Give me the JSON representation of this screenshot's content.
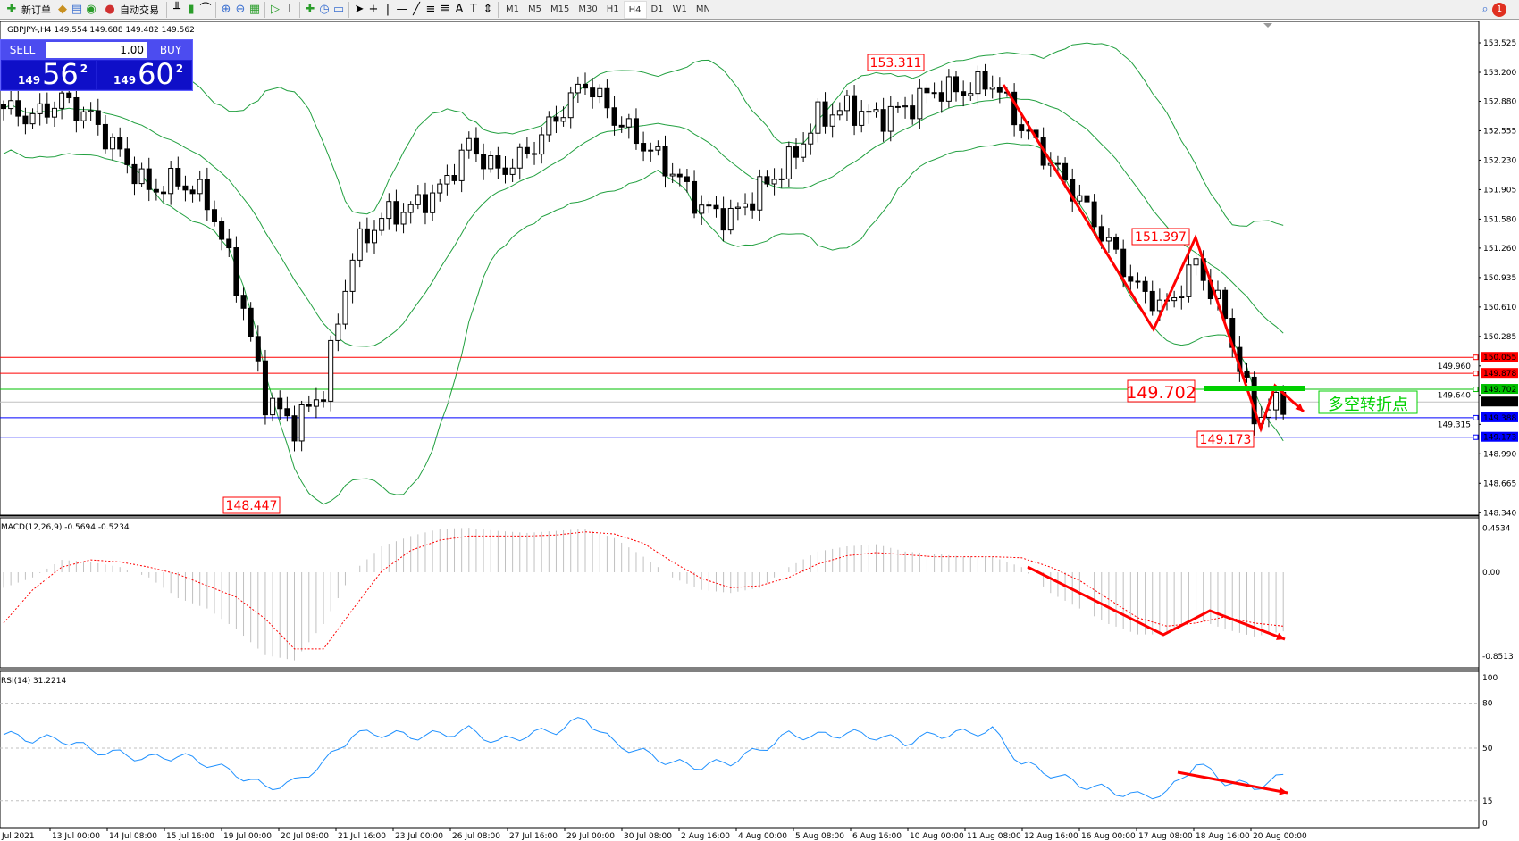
{
  "toolbar": {
    "new_order": "新订单",
    "auto_trading": "自动交易",
    "icons": [
      "new-order-icon",
      "gold-icon",
      "history-icon",
      "signal-icon",
      "auto-trading-icon",
      "bar-chart-icon",
      "candle-chart-icon",
      "line-chart-icon",
      "zoom-in-icon",
      "zoom-out-icon",
      "tile-icon",
      "autoscroll-icon",
      "chart-shift-icon",
      "indicators-icon",
      "period-icon",
      "template-icon",
      "cursor-icon",
      "crosshair-icon",
      "vertical-line-icon",
      "horizontal-line-icon",
      "trendline-icon",
      "fibo-icon",
      "channel-icon",
      "text-icon",
      "text-label-icon",
      "arrows-icon",
      "search-icon",
      "notification-icon"
    ],
    "timeframes": [
      "M1",
      "M5",
      "M15",
      "M30",
      "H1",
      "H4",
      "D1",
      "W1",
      "MN"
    ],
    "active_timeframe": "H4",
    "notification_count": "1",
    "text_icon_A": "A"
  },
  "chart": {
    "header": "GBPJPY-,H4  149.554 149.688 149.482 149.562",
    "one_click": {
      "sell": "SELL",
      "buy": "BUY",
      "lot": "1.00",
      "sell_small": "149",
      "sell_big": "56",
      "sell_sup": "2",
      "buy_small": "149",
      "buy_big": "60",
      "buy_sup": "2"
    },
    "price_ticks": [
      "153.525",
      "153.200",
      "152.880",
      "152.555",
      "152.230",
      "151.905",
      "151.580",
      "151.260",
      "150.935",
      "150.610",
      "150.285",
      "149.960",
      "149.640",
      "149.315",
      "148.990",
      "148.665",
      "148.340"
    ],
    "levels": [
      {
        "price": "150.055",
        "color": "#ff0000"
      },
      {
        "price": "149.878",
        "color": "#ff0000"
      },
      {
        "price": "149.702",
        "color": "#00c000"
      },
      {
        "price": "149.562",
        "color": "#000000",
        "line": "#c0c0c0"
      },
      {
        "price": "149.388",
        "color": "#0000ff"
      },
      {
        "price": "149.173",
        "color": "#0000ff"
      }
    ],
    "annotations": {
      "high": "153.311",
      "swing": "151.397",
      "pivot": "149.702",
      "low2": "149.173",
      "low": "148.447",
      "note": "多空转折点"
    },
    "time_labels": [
      "Jul 2021",
      "13 Jul 00:00",
      "14 Jul 08:00",
      "15 Jul 16:00",
      "19 Jul 00:00",
      "20 Jul 08:00",
      "21 Jul 16:00",
      "23 Jul 00:00",
      "26 Jul 08:00",
      "27 Jul 16:00",
      "29 Jul 00:00",
      "30 Jul 08:00",
      "2 Aug 16:00",
      "4 Aug 00:00",
      "5 Aug 08:00",
      "6 Aug 16:00",
      "10 Aug 00:00",
      "11 Aug 08:00",
      "12 Aug 16:00",
      "16 Aug 00:00",
      "17 Aug 08:00",
      "18 Aug 16:00",
      "20 Aug 00:00"
    ],
    "macd_label": "MACD(12,26,9) -0.5694 -0.5234",
    "macd_ticks": [
      "0.4534",
      "0.00",
      "-0.8513"
    ],
    "rsi_label": "RSI(14) 31.2214",
    "rsi_ticks": [
      "100",
      "80",
      "50",
      "15",
      "0"
    ]
  },
  "chart_data": {
    "type": "candlestick",
    "symbol": "GBPJPY",
    "timeframe": "H4",
    "price_range": [
      148.34,
      153.525
    ],
    "close_path": [
      152.8,
      152.7,
      152.9,
      152.7,
      152.3,
      151.9,
      152.0,
      151.8,
      150.9,
      149.6,
      149.3,
      149.7,
      151.2,
      151.6,
      151.7,
      151.9,
      152.4,
      152.1,
      152.3,
      152.7,
      153.1,
      152.7,
      152.4,
      152.1,
      151.7,
      151.6,
      151.9,
      152.2,
      152.7,
      152.8,
      152.7,
      152.8,
      153.0,
      153.0,
      153.1,
      152.6,
      152.2,
      151.8,
      151.3,
      150.8,
      150.6,
      151.1,
      150.5,
      149.4,
      149.56
    ],
    "macd_histogram": [
      -0.15,
      -0.05,
      0.12,
      0.1,
      0.05,
      -0.05,
      -0.25,
      -0.35,
      -0.55,
      -0.8,
      -0.85,
      -0.5,
      0.0,
      0.25,
      0.35,
      0.42,
      0.43,
      0.4,
      0.38,
      0.4,
      0.42,
      0.33,
      0.15,
      -0.05,
      -0.17,
      -0.2,
      -0.15,
      0.05,
      0.2,
      0.25,
      0.27,
      0.2,
      0.18,
      0.15,
      0.15,
      0.05,
      -0.2,
      -0.35,
      -0.5,
      -0.6,
      -0.6,
      -0.45,
      -0.55,
      -0.62,
      -0.57
    ],
    "macd_signal": [
      -0.49,
      -0.17,
      0.05,
      0.12,
      0.1,
      0.05,
      -0.02,
      -0.13,
      -0.24,
      -0.45,
      -0.74,
      -0.74,
      -0.36,
      0.01,
      0.21,
      0.31,
      0.35,
      0.35,
      0.35,
      0.36,
      0.39,
      0.37,
      0.28,
      0.1,
      -0.06,
      -0.15,
      -0.13,
      -0.05,
      0.08,
      0.16,
      0.19,
      0.17,
      0.15,
      0.15,
      0.15,
      0.14,
      0.05,
      -0.08,
      -0.26,
      -0.44,
      -0.52,
      -0.49,
      -0.43,
      -0.49,
      -0.52
    ],
    "macd_range": [
      -0.8513,
      0.4534
    ],
    "rsi": [
      59,
      56,
      56,
      49,
      46,
      43,
      45,
      40,
      33,
      24,
      27,
      40,
      59,
      60,
      58,
      59,
      62,
      54,
      59,
      62,
      70,
      53,
      47,
      40,
      38,
      41,
      49,
      59,
      58,
      60,
      58,
      54,
      59,
      60,
      62,
      40,
      33,
      26,
      22,
      18,
      20,
      40,
      28,
      24,
      31
    ],
    "rsi_levels": [
      80,
      50,
      15
    ],
    "colors": {
      "bollinger": "#22a040",
      "rsi": "#1e90ff",
      "macd_signal": "#ff0000",
      "histogram": "#c0c0c0",
      "arrows": "#ff0000"
    }
  }
}
